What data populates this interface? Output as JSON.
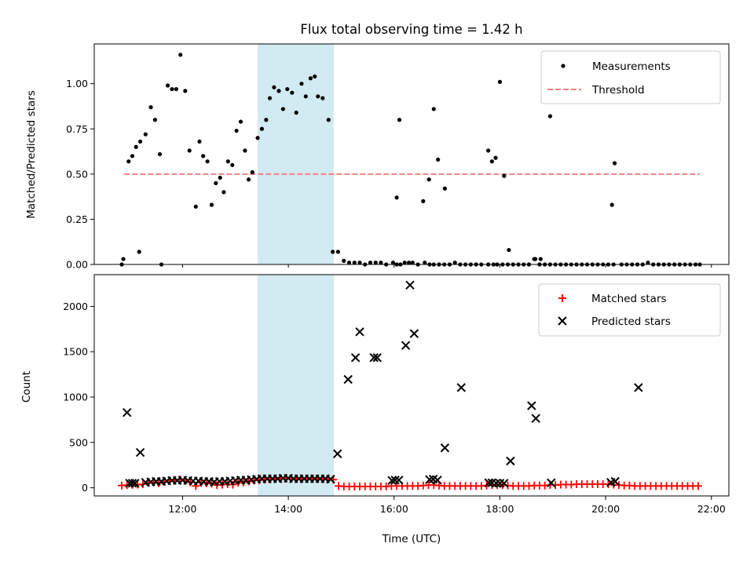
{
  "chart_data": [
    {
      "type": "scatter",
      "title": "Flux total observing time = 1.42 h",
      "xlabel": "",
      "ylabel": "Matched/Predicted stars",
      "xlim": [
        10.33,
        22.33
      ],
      "ylim": [
        0,
        1.22
      ],
      "yticks": [
        0.0,
        0.25,
        0.5,
        0.75,
        1.0
      ],
      "ytick_labels": [
        "0.00",
        "0.25",
        "0.50",
        "0.75",
        "1.00"
      ],
      "shaded_span": {
        "x": [
          13.42,
          14.86
        ],
        "color": "#add8e6"
      },
      "legend": {
        "placement": "upper right",
        "entries": [
          "Measurements",
          "Threshold"
        ]
      },
      "series": [
        {
          "name": "Measurements",
          "marker": "dot",
          "color": "#000000",
          "x": [
            10.98,
            11.05,
            11.12,
            11.2,
            11.3,
            11.4,
            11.48,
            11.57,
            11.72,
            11.8,
            11.88,
            11.96,
            12.05,
            12.13,
            12.25,
            12.32,
            12.39,
            12.47,
            12.55,
            12.63,
            12.71,
            12.78,
            12.86,
            12.94,
            13.02,
            13.1,
            13.18,
            13.25,
            13.32,
            13.42,
            13.5,
            13.58,
            13.65,
            13.73,
            13.82,
            13.9,
            13.98,
            14.07,
            14.15,
            14.25,
            14.33,
            14.42,
            14.5,
            14.56,
            14.65,
            14.76,
            14.84,
            10.85,
            10.88,
            11.18,
            11.6,
            14.94,
            15.05,
            15.15,
            15.25,
            15.35,
            15.45,
            15.55,
            15.65,
            15.75,
            15.85,
            15.98,
            16.05,
            16.12,
            16.2,
            16.28,
            16.35,
            16.45,
            16.58,
            16.67,
            16.75,
            16.85,
            16.95,
            17.05,
            17.15,
            17.25,
            17.35,
            17.45,
            17.55,
            17.65,
            17.78,
            17.88,
            17.95,
            18.05,
            18.15,
            18.25,
            18.35,
            18.45,
            18.55,
            18.65,
            18.75,
            18.85,
            18.95,
            19.05,
            19.15,
            19.25,
            19.35,
            19.45,
            19.55,
            19.65,
            19.75,
            19.85,
            19.95,
            20.05,
            20.15,
            20.3,
            20.4,
            20.5,
            20.6,
            20.7,
            20.8,
            20.9,
            21.0,
            21.1,
            21.2,
            21.3,
            21.4,
            21.5,
            21.6,
            21.7,
            21.78,
            16.05,
            16.1,
            16.55,
            16.66,
            16.75,
            16.83,
            16.96,
            17.78,
            17.85,
            17.92,
            18.0,
            18.08,
            18.17,
            18.67,
            18.77,
            18.95,
            20.12,
            20.17
          ],
          "y": [
            0.57,
            0.6,
            0.65,
            0.68,
            0.72,
            0.87,
            0.8,
            0.61,
            0.99,
            0.97,
            0.97,
            1.16,
            0.96,
            0.63,
            0.32,
            0.68,
            0.6,
            0.57,
            0.33,
            0.45,
            0.48,
            0.4,
            0.57,
            0.55,
            0.74,
            0.79,
            0.63,
            0.47,
            0.51,
            0.7,
            0.75,
            0.8,
            0.92,
            0.98,
            0.96,
            0.86,
            0.97,
            0.95,
            0.84,
            1.0,
            0.93,
            1.03,
            1.04,
            0.93,
            0.92,
            0.8,
            0.07,
            0.0,
            0.03,
            0.07,
            0.0,
            0.07,
            0.02,
            0.01,
            0.01,
            0.01,
            0.0,
            0.01,
            0.01,
            0.01,
            0.0,
            0.01,
            0.0,
            0.0,
            0.01,
            0.01,
            0.01,
            0.0,
            0.01,
            0.0,
            0.0,
            0.0,
            0.0,
            0.0,
            0.01,
            0.0,
            0.0,
            0.0,
            0.0,
            0.0,
            0.0,
            0.0,
            0.0,
            0.0,
            0.0,
            0.0,
            0.0,
            0.0,
            0.0,
            0.03,
            0.0,
            0.0,
            0.0,
            0.0,
            0.0,
            0.0,
            0.0,
            0.0,
            0.0,
            0.0,
            0.0,
            0.0,
            0.0,
            0.0,
            0.0,
            0.0,
            0.0,
            0.0,
            0.0,
            0.0,
            0.01,
            0.0,
            0.0,
            0.0,
            0.0,
            0.0,
            0.0,
            0.0,
            0.0,
            0.0,
            0.0,
            0.37,
            0.8,
            0.35,
            0.47,
            0.86,
            0.58,
            0.42,
            0.63,
            0.57,
            0.59,
            1.01,
            0.49,
            0.08,
            0.03,
            0.03,
            0.82,
            0.33,
            0.56
          ]
        },
        {
          "name": "Threshold",
          "style": "dashed",
          "color": "#f08080",
          "x": [
            10.9,
            21.78
          ],
          "y": [
            0.5,
            0.5
          ]
        }
      ]
    },
    {
      "type": "scatter",
      "title": "",
      "xlabel": "Time (UTC)",
      "ylabel": "Count",
      "xlim": [
        10.33,
        22.33
      ],
      "ylim": [
        -90,
        2350
      ],
      "yticks": [
        0,
        500,
        1000,
        1500,
        2000
      ],
      "ytick_labels": [
        "0",
        "500",
        "1000",
        "1500",
        "2000"
      ],
      "xticks": [
        12,
        14,
        16,
        18,
        20,
        22
      ],
      "xtick_labels": [
        "12:00",
        "14:00",
        "16:00",
        "18:00",
        "20:00",
        "22:00"
      ],
      "shaded_span": {
        "x": [
          13.42,
          14.86
        ],
        "color": "#add8e6"
      },
      "legend": {
        "placement": "upper right",
        "entries": [
          "Matched stars",
          "Predicted stars"
        ]
      },
      "series": [
        {
          "name": "Matched stars",
          "marker": "plus",
          "color": "#ff0000",
          "x": [
            10.85,
            10.95,
            11.05,
            11.15,
            11.25,
            11.35,
            11.45,
            11.55,
            11.65,
            11.75,
            11.85,
            11.95,
            12.05,
            12.15,
            12.25,
            12.35,
            12.45,
            12.55,
            12.65,
            12.75,
            12.85,
            12.95,
            13.05,
            13.15,
            13.25,
            13.35,
            13.45,
            13.55,
            13.65,
            13.75,
            13.85,
            13.95,
            14.05,
            14.15,
            14.25,
            14.35,
            14.45,
            14.55,
            14.65,
            14.75,
            14.85,
            14.95,
            15.05,
            15.15,
            15.25,
            15.35,
            15.45,
            15.55,
            15.65,
            15.75,
            15.85,
            15.95,
            16.05,
            16.15,
            16.25,
            16.35,
            16.45,
            16.55,
            16.65,
            16.75,
            16.85,
            16.95,
            17.05,
            17.15,
            17.25,
            17.35,
            17.45,
            17.55,
            17.65,
            17.75,
            17.85,
            17.95,
            18.05,
            18.15,
            18.25,
            18.35,
            18.45,
            18.55,
            18.65,
            18.75,
            18.85,
            18.95,
            19.05,
            19.15,
            19.25,
            19.35,
            19.45,
            19.55,
            19.65,
            19.75,
            19.85,
            19.95,
            20.05,
            20.15,
            20.25,
            20.35,
            20.45,
            20.55,
            20.65,
            20.75,
            20.85,
            20.95,
            21.05,
            21.15,
            21.25,
            21.35,
            21.45,
            21.55,
            21.65,
            21.75
          ],
          "y": [
            25,
            30,
            32,
            35,
            40,
            55,
            60,
            50,
            65,
            80,
            85,
            90,
            80,
            60,
            20,
            55,
            50,
            45,
            30,
            35,
            40,
            35,
            55,
            60,
            70,
            80,
            85,
            90,
            95,
            100,
            100,
            100,
            100,
            100,
            100,
            100,
            100,
            100,
            100,
            95,
            90,
            20,
            15,
            15,
            15,
            15,
            15,
            15,
            15,
            15,
            15,
            20,
            20,
            20,
            20,
            20,
            20,
            25,
            30,
            30,
            25,
            20,
            20,
            20,
            20,
            20,
            20,
            20,
            20,
            25,
            30,
            30,
            30,
            25,
            20,
            20,
            20,
            20,
            25,
            25,
            25,
            30,
            30,
            35,
            35,
            35,
            40,
            40,
            40,
            40,
            40,
            40,
            40,
            35,
            30,
            25,
            25,
            20,
            20,
            20,
            20,
            20,
            20,
            20,
            20,
            20,
            20,
            20,
            20,
            20
          ]
        },
        {
          "name": "Predicted stars",
          "marker": "x",
          "color": "#000000",
          "x": [
            10.95,
            11.2,
            11.0,
            11.05,
            11.1,
            11.3,
            11.4,
            11.5,
            11.6,
            11.7,
            11.8,
            11.9,
            12.0,
            12.1,
            12.2,
            12.3,
            12.4,
            12.5,
            12.6,
            12.7,
            12.8,
            12.9,
            13.0,
            13.1,
            13.2,
            13.3,
            13.4,
            13.5,
            13.6,
            13.7,
            13.8,
            13.9,
            14.0,
            14.1,
            14.2,
            14.3,
            14.4,
            14.5,
            14.6,
            14.7,
            14.8,
            14.93,
            15.13,
            15.27,
            15.35,
            15.62,
            15.68,
            15.96,
            16.02,
            16.09,
            16.22,
            16.3,
            16.38,
            16.67,
            16.74,
            16.82,
            16.96,
            17.27,
            17.79,
            17.85,
            17.93,
            18.0,
            18.08,
            18.2,
            18.6,
            18.68,
            18.97,
            20.1,
            20.18,
            20.62
          ],
          "y": [
            830,
            390,
            50,
            50,
            50,
            60,
            65,
            70,
            70,
            75,
            80,
            80,
            85,
            80,
            75,
            75,
            70,
            70,
            65,
            70,
            70,
            75,
            80,
            85,
            85,
            90,
            95,
            100,
            100,
            100,
            100,
            105,
            105,
            100,
            100,
            100,
            100,
            100,
            100,
            100,
            95,
            375,
            1195,
            1435,
            1720,
            1435,
            1435,
            80,
            85,
            85,
            1570,
            2235,
            1700,
            90,
            95,
            85,
            440,
            1105,
            55,
            55,
            50,
            50,
            50,
            295,
            905,
            765,
            55,
            60,
            70,
            1105
          ]
        }
      ]
    }
  ]
}
